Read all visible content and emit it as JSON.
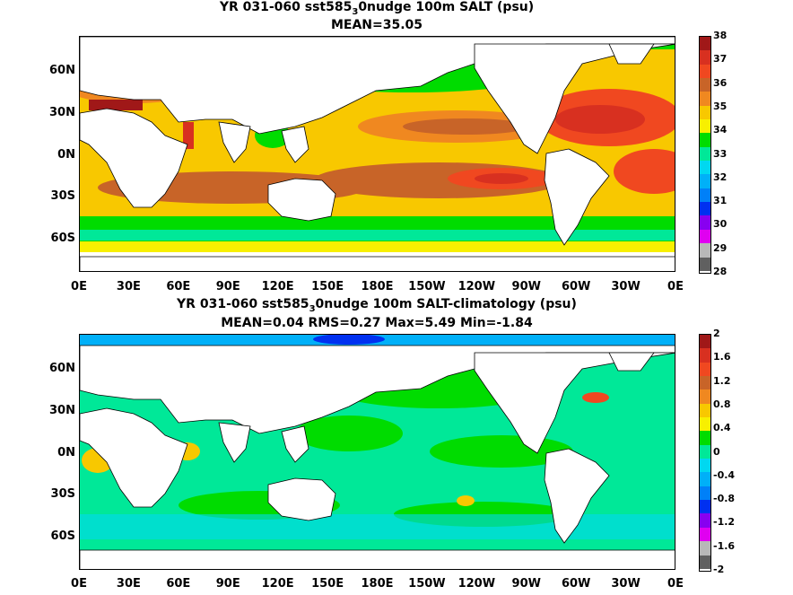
{
  "top_panel": {
    "title_line1_pre": "YR 031-060 sst585",
    "title_sub": "3",
    "title_line1_post": "0nudge 100m SALT (psu)",
    "title_line2": "MEAN=35.05",
    "y_ticks": [
      "60N",
      "30N",
      "0N",
      "30S",
      "60S"
    ],
    "x_ticks": [
      "0E",
      "30E",
      "60E",
      "90E",
      "120E",
      "150E",
      "180E",
      "150W",
      "120W",
      "90W",
      "60W",
      "30W",
      "0E"
    ],
    "colorbar_labels": [
      "38",
      "37",
      "36",
      "35",
      "34",
      "33",
      "32",
      "31",
      "30",
      "29",
      "28"
    ],
    "colorbar_colors": [
      "#a01818",
      "#d83020",
      "#f04820",
      "#c86428",
      "#f08820",
      "#f8c800",
      "#f8f000",
      "#00dc00",
      "#00e898",
      "#00d8f0",
      "#00b0f8",
      "#0080f8",
      "#0030f0",
      "#8800f0",
      "#e000f0",
      "#b8b8b8",
      "#606060"
    ]
  },
  "bottom_panel": {
    "title_line1_pre": "YR 031-060 sst585",
    "title_sub": "3",
    "title_line1_post": "0nudge 100m SALT-climatology (psu)",
    "title_line2": "MEAN=0.04   RMS=0.27   Max=5.49   Min=-1.84",
    "y_ticks": [
      "60N",
      "30N",
      "0N",
      "30S",
      "60S"
    ],
    "x_ticks": [
      "0E",
      "30E",
      "60E",
      "90E",
      "120E",
      "150E",
      "180E",
      "150W",
      "120W",
      "90W",
      "60W",
      "30W",
      "0E"
    ],
    "colorbar_labels": [
      "2",
      "1.6",
      "1.2",
      "0.8",
      "0.4",
      "0",
      "-0.4",
      "-0.8",
      "-1.2",
      "-1.6",
      "-2"
    ],
    "colorbar_colors": [
      "#a01818",
      "#d83020",
      "#f04820",
      "#c86428",
      "#f08820",
      "#f8c800",
      "#f8f000",
      "#00dc00",
      "#00e898",
      "#00d8f0",
      "#00b0f8",
      "#0080f8",
      "#0030f0",
      "#8800f0",
      "#e000f0",
      "#b8b8b8",
      "#606060"
    ]
  }
}
